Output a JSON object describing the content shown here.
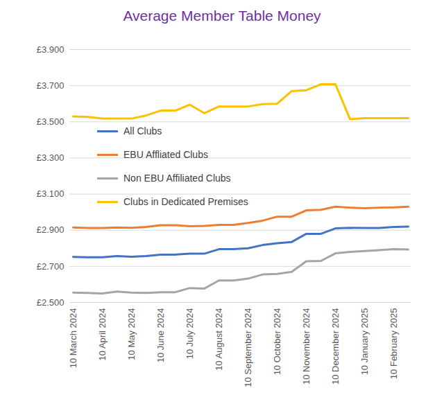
{
  "chart_data": {
    "type": "line",
    "title": "Average Member Table Money",
    "categories": [
      "10 March 2024",
      null,
      "10 April 2024",
      null,
      "10 May 2024",
      null,
      "10 June 2024",
      null,
      "10 July 2024",
      null,
      "10 August 2024",
      null,
      "10 September 2024",
      null,
      "10 October 2024",
      null,
      "10 November 2024",
      null,
      "10 December 2024",
      null,
      "10 January 2025",
      null,
      "10 February 2025",
      null
    ],
    "series": [
      {
        "name": "All Clubs",
        "color": "#4472c4",
        "values": [
          2.752,
          2.75,
          2.75,
          2.757,
          2.753,
          2.757,
          2.765,
          2.765,
          2.77,
          2.77,
          2.795,
          2.795,
          2.8,
          2.818,
          2.828,
          2.835,
          2.88,
          2.88,
          2.91,
          2.913,
          2.912,
          2.912,
          2.918,
          2.92
        ]
      },
      {
        "name": "EBU Affliated Clubs",
        "color": "#ed7d31",
        "values": [
          2.915,
          2.912,
          2.912,
          2.915,
          2.913,
          2.918,
          2.928,
          2.928,
          2.922,
          2.924,
          2.93,
          2.93,
          2.94,
          2.953,
          2.975,
          2.975,
          3.01,
          3.013,
          3.03,
          3.025,
          3.022,
          3.025,
          3.026,
          3.03
        ]
      },
      {
        "name": "Non EBU Affiliated Clubs",
        "color": "#a5a5a5",
        "values": [
          2.555,
          2.553,
          2.55,
          2.56,
          2.555,
          2.553,
          2.557,
          2.557,
          2.58,
          2.577,
          2.622,
          2.622,
          2.632,
          2.655,
          2.658,
          2.67,
          2.728,
          2.73,
          2.772,
          2.78,
          2.785,
          2.79,
          2.795,
          2.793
        ]
      },
      {
        "name": "Clubs in Dedicated Premises",
        "color": "#ffc000",
        "values": [
          3.53,
          3.527,
          3.518,
          3.518,
          3.518,
          3.535,
          3.562,
          3.562,
          3.595,
          3.548,
          3.585,
          3.585,
          3.585,
          3.598,
          3.6,
          3.67,
          3.675,
          3.708,
          3.708,
          3.515,
          3.52,
          3.52,
          3.52,
          3.52
        ]
      }
    ],
    "ylim": [
      2.5,
      3.9
    ],
    "yticks": [
      {
        "value": 2.5,
        "label": "£2.500"
      },
      {
        "value": 2.7,
        "label": "£2.700"
      },
      {
        "value": 2.9,
        "label": "£2.900"
      },
      {
        "value": 3.1,
        "label": "£3.100"
      },
      {
        "value": 3.3,
        "label": "£3.300"
      },
      {
        "value": 3.5,
        "label": "£3.500"
      },
      {
        "value": 3.7,
        "label": "£3.700"
      },
      {
        "value": 3.9,
        "label": "£3.900"
      }
    ],
    "grid": true,
    "legend": "upper left"
  }
}
